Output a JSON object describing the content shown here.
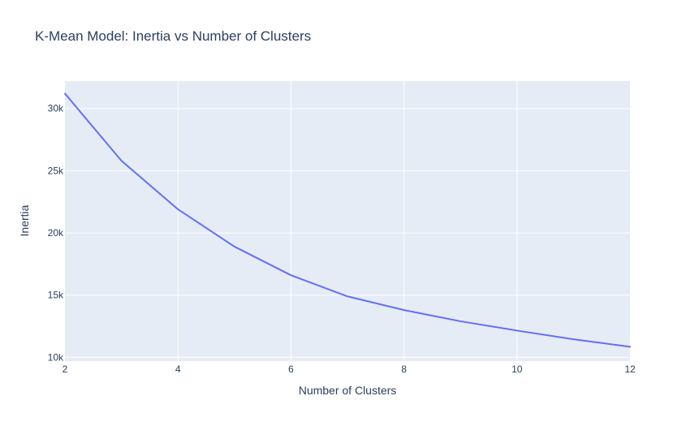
{
  "chart_data": {
    "type": "line",
    "title": "K-Mean Model: Inertia vs Number of Clusters",
    "xlabel": "Number of Clusters",
    "ylabel": "Inertia",
    "x": [
      2,
      3,
      4,
      5,
      6,
      7,
      8,
      9,
      10,
      11,
      12
    ],
    "series": [
      {
        "values": [
          31200,
          25800,
          21900,
          18900,
          16600,
          14900,
          13800,
          12900,
          12150,
          11450,
          10850
        ]
      }
    ],
    "xlim": [
      2,
      12
    ],
    "ylim": [
      9700,
      32200
    ],
    "xticks": [
      2,
      4,
      6,
      8,
      10,
      12
    ],
    "xtick_labels": [
      "2",
      "4",
      "6",
      "8",
      "10",
      "12"
    ],
    "yticks": [
      10000,
      15000,
      20000,
      25000,
      30000
    ],
    "ytick_labels": [
      "10k",
      "15k",
      "20k",
      "25k",
      "30k"
    ],
    "grid": true,
    "colors": {
      "line": "#636efa",
      "plot_bg": "#e5ecf6",
      "grid": "#ffffff",
      "text": "#2a3f5f"
    }
  }
}
